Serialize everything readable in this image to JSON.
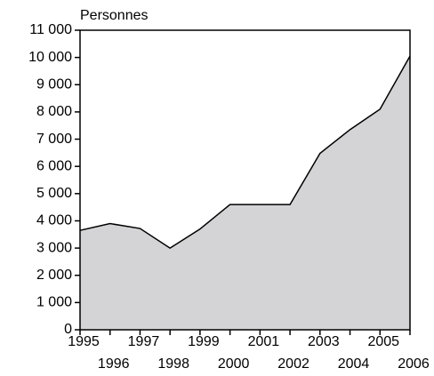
{
  "chart_data": {
    "type": "area",
    "y_label": "Personnes",
    "x": [
      1995,
      1996,
      1997,
      1998,
      1999,
      2000,
      2001,
      2002,
      2003,
      2004,
      2005,
      2006
    ],
    "values": [
      3650,
      3900,
      3720,
      3000,
      3700,
      4600,
      4600,
      4600,
      6480,
      7350,
      8100,
      10050
    ],
    "color": "#d4d4d6",
    "xlim": [
      1995,
      2006
    ],
    "xticks": [
      1995,
      1996,
      1997,
      1998,
      1999,
      2000,
      2001,
      2002,
      2003,
      2004,
      2005,
      2006
    ],
    "ylim": [
      0,
      11000
    ],
    "yticks": [
      0,
      {
        "value": 1000,
        "label": "1 000"
      },
      {
        "value": 2000,
        "label": "2 000"
      },
      {
        "value": 3000,
        "label": "3 000"
      },
      {
        "value": 4000,
        "label": "4 000"
      },
      {
        "value": 5000,
        "label": "5 000"
      },
      {
        "value": 6000,
        "label": "6 000"
      },
      {
        "value": 7000,
        "label": "7 000"
      },
      {
        "value": 8000,
        "label": "8 000"
      },
      {
        "value": 9000,
        "label": "9 000"
      },
      {
        "value": 10000,
        "label": "10 000"
      },
      {
        "value": 11000,
        "label": "11 000"
      }
    ],
    "grid": false
  }
}
